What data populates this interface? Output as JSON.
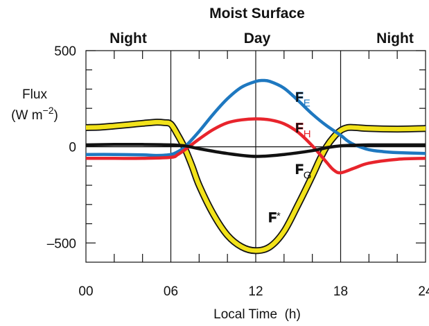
{
  "chart_data": {
    "type": "line",
    "title": "Moist Surface",
    "period_labels": [
      "Night",
      "Day",
      "Night"
    ],
    "xlabel": "Local Time  (h)",
    "ylabel": "Flux",
    "ylabel_units": "(W m−2)",
    "xlim": [
      0,
      24
    ],
    "ylim": [
      -600,
      500
    ],
    "x_ticks": [
      "00",
      "06",
      "12",
      "18",
      "24"
    ],
    "y_ticks": [
      "500",
      "0",
      "–500"
    ],
    "y_tick_values": [
      500,
      0,
      -500
    ],
    "vertical_lines": [
      6,
      12,
      18
    ],
    "horizontal_line": 0,
    "series": [
      {
        "name": "F*",
        "label_main": "F",
        "label_sub": "",
        "label_sup": "*",
        "color": "#f2e21a",
        "outline": "#111111",
        "label_x": 12.9,
        "label_y": -390,
        "x": [
          0,
          1,
          2,
          3,
          4,
          5,
          5.5,
          6,
          6.5,
          7,
          7.5,
          8,
          9,
          10,
          11,
          12,
          13,
          14,
          15,
          16,
          16.5,
          17,
          17.5,
          18,
          18.5,
          19,
          20,
          22,
          24
        ],
        "y": [
          100,
          102,
          108,
          115,
          122,
          128,
          126,
          118,
          60,
          -10,
          -100,
          -200,
          -350,
          -460,
          -520,
          -540,
          -520,
          -440,
          -300,
          -150,
          -70,
          0,
          50,
          85,
          100,
          100,
          95,
          92,
          95
        ]
      },
      {
        "name": "FE",
        "label_main": "F",
        "label_sub": "E",
        "label_sup": "",
        "color": "#1e78c0",
        "outline": "",
        "label_x": 14.8,
        "label_y": 235,
        "x": [
          0,
          2,
          4,
          5,
          6,
          6.5,
          7,
          8,
          9,
          10,
          11,
          12,
          12.5,
          13,
          14,
          15,
          16,
          17,
          18,
          18.5,
          19,
          20,
          21,
          22,
          24
        ],
        "y": [
          -40,
          -40,
          -42,
          -45,
          -40,
          -25,
          0,
          80,
          170,
          250,
          310,
          340,
          345,
          340,
          305,
          240,
          170,
          110,
          60,
          30,
          10,
          -15,
          -25,
          -30,
          -35
        ]
      },
      {
        "name": "FH",
        "label_main": "F",
        "label_sub": "H",
        "label_sup": "",
        "color": "#e8242c",
        "outline": "",
        "label_x": 14.8,
        "label_y": 75,
        "x": [
          0,
          2,
          4,
          6,
          6.5,
          7,
          8,
          9,
          10,
          11,
          12,
          13,
          14,
          15,
          16,
          17,
          17.5,
          18,
          19,
          20,
          22,
          24
        ],
        "y": [
          -60,
          -60,
          -60,
          -55,
          -40,
          -15,
          40,
          90,
          125,
          140,
          145,
          140,
          120,
          75,
          5,
          -80,
          -120,
          -135,
          -110,
          -85,
          -65,
          -60
        ]
      },
      {
        "name": "FG",
        "label_main": "F",
        "label_sub": "G",
        "label_sup": "",
        "color": "#111111",
        "outline": "",
        "label_x": 14.8,
        "label_y": -140,
        "x": [
          0,
          2,
          4,
          6,
          7,
          8,
          10,
          12,
          14,
          16,
          17,
          18,
          19,
          20,
          22,
          24
        ],
        "y": [
          10,
          12,
          12,
          10,
          5,
          -10,
          -35,
          -50,
          -40,
          -20,
          -5,
          5,
          8,
          10,
          10,
          10
        ]
      }
    ]
  }
}
